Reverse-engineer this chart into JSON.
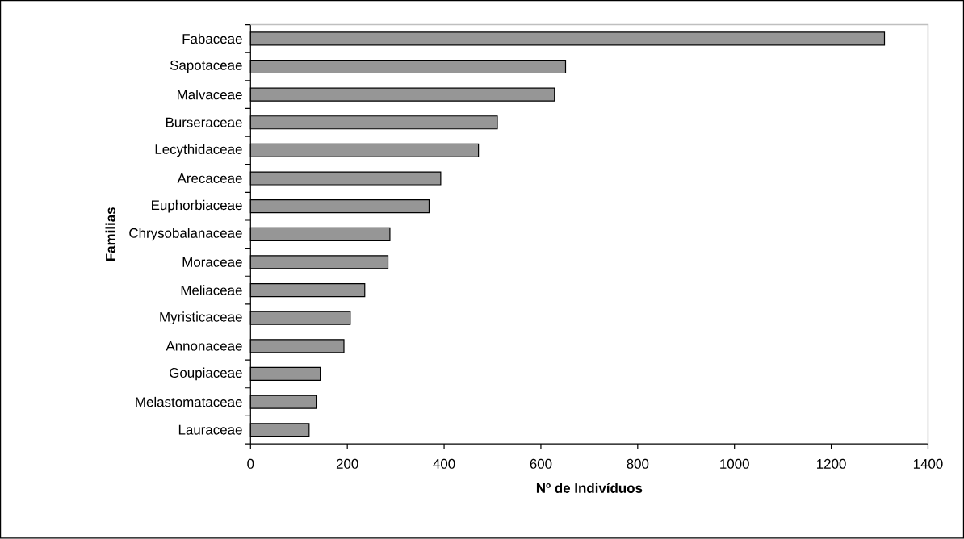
{
  "chart_data": {
    "type": "bar",
    "orientation": "horizontal",
    "xlabel": "**Nº de Indivíduos**",
    "ylabel": "**Familias**",
    "categories": [
      "Fabaceae",
      "Sapotaceae",
      "Malvaceae",
      "Burseraceae",
      "Lecythidaceae",
      "Arecaceae",
      "Euphorbiaceae",
      "Chrysobalanaceae",
      "Moraceae",
      "Meliaceae",
      "Myristicaceae",
      "Annonaceae",
      "Goupiaceae",
      "Melastomataceae",
      "Lauraceae"
    ],
    "values": [
      1310,
      651,
      628,
      510,
      471,
      393,
      369,
      288,
      284,
      236,
      206,
      193,
      144,
      137,
      121
    ],
    "color": "#969696",
    "xlim": [
      0,
      1400
    ],
    "xticks": [
      0,
      200,
      400,
      600,
      800,
      1000,
      1200,
      1400
    ],
    "grid": false
  }
}
